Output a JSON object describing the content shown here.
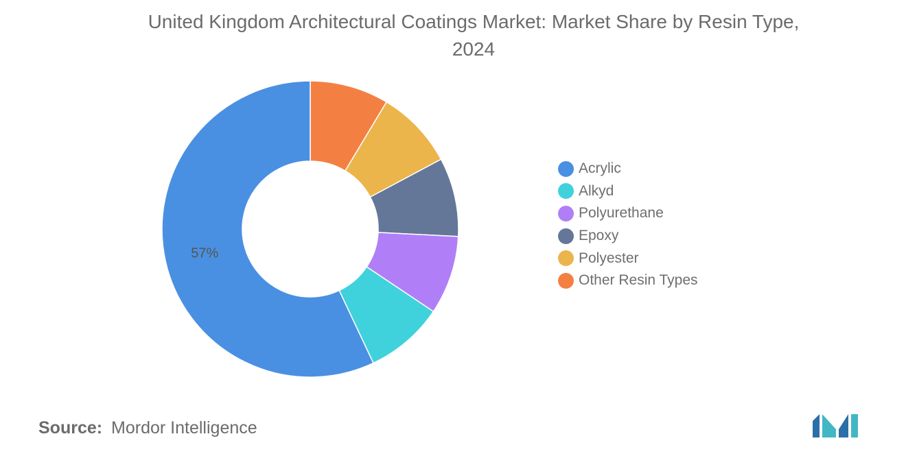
{
  "header": {
    "title_line1": "United Kingdom Architectural Coatings Market: Market Share by Resin Type,",
    "title_line2": "2024"
  },
  "chart_data": {
    "type": "pie",
    "donut": true,
    "title": "United Kingdom Architectural Coatings Market: Market Share by Resin Type, 2024",
    "categories": [
      "Acrylic",
      "Alkyd",
      "Polyurethane",
      "Epoxy",
      "Polyester",
      "Other Resin Types"
    ],
    "values": [
      57,
      8.6,
      8.6,
      8.6,
      8.6,
      8.6
    ],
    "colors": [
      "#4a90e2",
      "#3fd2dc",
      "#b07ff7",
      "#647799",
      "#ebb54b",
      "#f38042"
    ],
    "data_labels": [
      "57%",
      "",
      "",
      "",
      "",
      ""
    ],
    "legend_position": "right"
  },
  "footer": {
    "source_label": "Source:",
    "source_value": "Mordor Intelligence"
  },
  "logo": {
    "name": "mordor-intelligence-logo",
    "colors": [
      "#2a6fa8",
      "#41b7c4"
    ]
  }
}
